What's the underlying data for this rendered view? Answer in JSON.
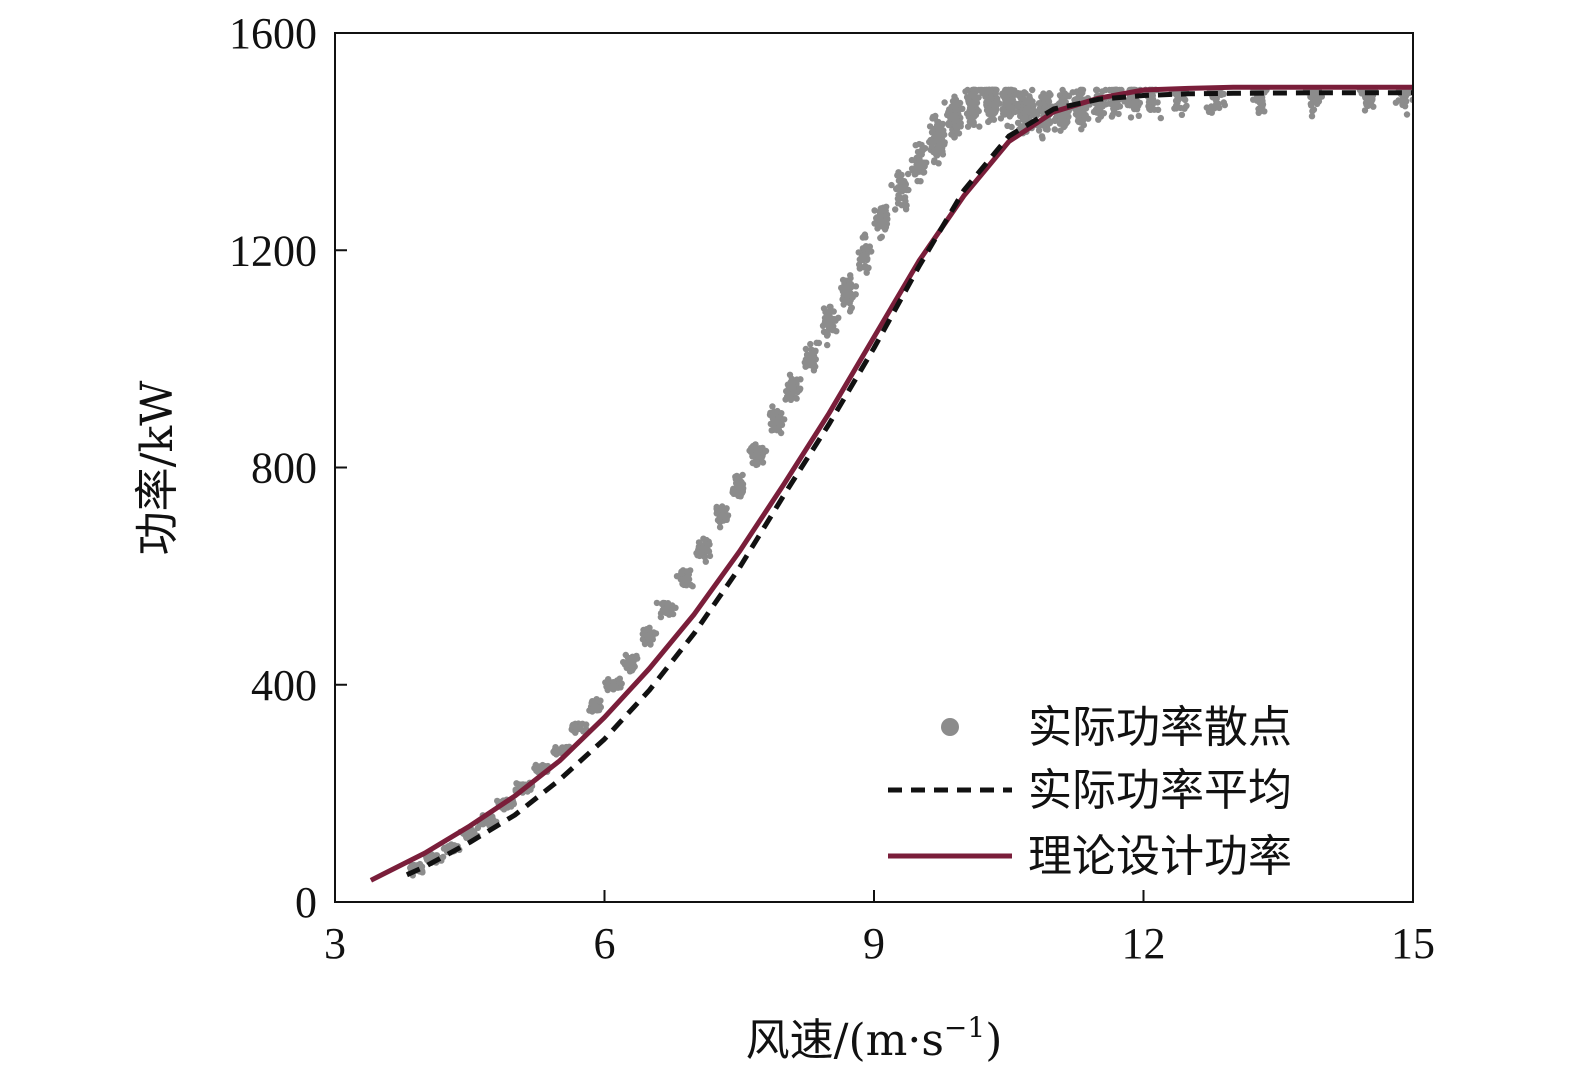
{
  "chart_data": {
    "type": "scatter",
    "xlabel": "风速/(m·s",
    "xlabel_sup": "−1",
    "xlabel_close": ")",
    "ylabel": "功率/kW",
    "xlim": [
      3,
      15
    ],
    "ylim": [
      0,
      1600
    ],
    "xticks": [
      3,
      6,
      9,
      12,
      15
    ],
    "yticks": [
      0,
      400,
      800,
      1200,
      1600
    ],
    "grid": false,
    "legend_position": "bottom-right",
    "colors": {
      "scatter": "#8c8c8c",
      "average": "#111111",
      "design": "#7a1e3a"
    },
    "series": [
      {
        "name": "实际功率散点",
        "kind": "scatter",
        "x": [
          3.9,
          4.1,
          4.3,
          4.5,
          4.7,
          4.9,
          5.1,
          5.3,
          5.5,
          5.7,
          5.9,
          6.1,
          6.3,
          6.5,
          6.7,
          6.9,
          7.1,
          7.3,
          7.5,
          7.7,
          7.9,
          8.1,
          8.3,
          8.5,
          8.7,
          8.9,
          9.1,
          9.3,
          9.5,
          9.7,
          9.9,
          10.1,
          10.3,
          10.5,
          10.7,
          10.9,
          11.1,
          11.3,
          11.5,
          11.7,
          11.9,
          12.1,
          12.4,
          12.8,
          13.3,
          13.9,
          14.5,
          14.9
        ],
        "y": [
          60,
          80,
          100,
          125,
          150,
          180,
          210,
          245,
          280,
          320,
          360,
          400,
          440,
          490,
          540,
          595,
          650,
          710,
          765,
          825,
          885,
          945,
          1005,
          1065,
          1125,
          1190,
          1250,
          1310,
          1360,
          1405,
          1445,
          1470,
          1480,
          1475,
          1460,
          1450,
          1455,
          1465,
          1475,
          1480,
          1483,
          1485,
          1487,
          1488,
          1489,
          1490,
          1490,
          1490
        ]
      },
      {
        "name": "实际功率平均",
        "kind": "line",
        "style": "dashed",
        "x": [
          3.8,
          4.0,
          4.5,
          5.0,
          5.5,
          6.0,
          6.5,
          7.0,
          7.5,
          8.0,
          8.5,
          9.0,
          9.5,
          10.0,
          10.5,
          11.0,
          11.5,
          12.0,
          12.5,
          13.0,
          14.0,
          15.0
        ],
        "y": [
          50,
          65,
          110,
          160,
          225,
          300,
          390,
          495,
          615,
          750,
          880,
          1020,
          1170,
          1310,
          1410,
          1460,
          1478,
          1485,
          1488,
          1489,
          1490,
          1490
        ]
      },
      {
        "name": "理论设计功率",
        "kind": "line",
        "style": "solid",
        "x": [
          3.4,
          4.0,
          4.5,
          5.0,
          5.5,
          6.0,
          6.5,
          7.0,
          7.5,
          8.0,
          8.5,
          9.0,
          9.5,
          10.0,
          10.5,
          11.0,
          11.5,
          12.0,
          12.5,
          13.0,
          14.0,
          15.0
        ],
        "y": [
          40,
          90,
          140,
          195,
          260,
          340,
          430,
          530,
          645,
          770,
          900,
          1040,
          1180,
          1300,
          1400,
          1455,
          1480,
          1495,
          1498,
          1500,
          1500,
          1500
        ]
      }
    ]
  }
}
